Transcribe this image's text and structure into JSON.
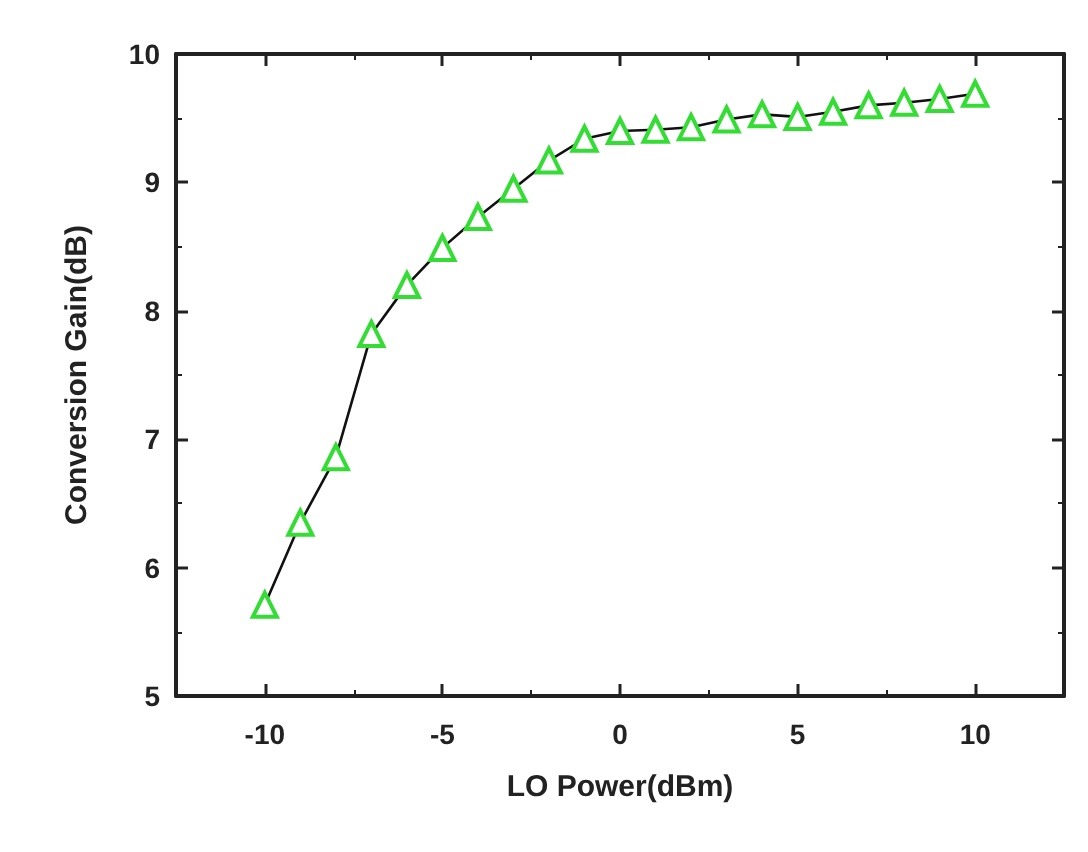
{
  "chart_data": {
    "type": "line",
    "xlabel": "LO Power(dBm)",
    "ylabel": "Conversion Gain(dB)",
    "x": [
      -10,
      -9,
      -8,
      -7,
      -6,
      -5,
      -4,
      -3,
      -2,
      -1,
      0,
      1,
      2,
      3,
      4,
      5,
      6,
      7,
      8,
      9,
      10
    ],
    "series": [
      {
        "color": "#33dd33",
        "values": [
          5.71,
          6.35,
          6.86,
          7.82,
          8.2,
          8.49,
          8.73,
          8.95,
          9.17,
          9.34,
          9.4,
          9.41,
          9.43,
          9.49,
          9.53,
          9.51,
          9.55,
          9.6,
          9.62,
          9.65,
          9.69
        ]
      }
    ],
    "xlim": [
      -12.5,
      12.5
    ],
    "xticks": [
      -10,
      -5,
      0,
      5,
      10
    ],
    "ylim": [
      5,
      10
    ],
    "yticks": [
      5,
      6,
      7,
      8,
      9,
      10
    ],
    "grid": false,
    "marker": "triangle",
    "line_style": "solid"
  }
}
